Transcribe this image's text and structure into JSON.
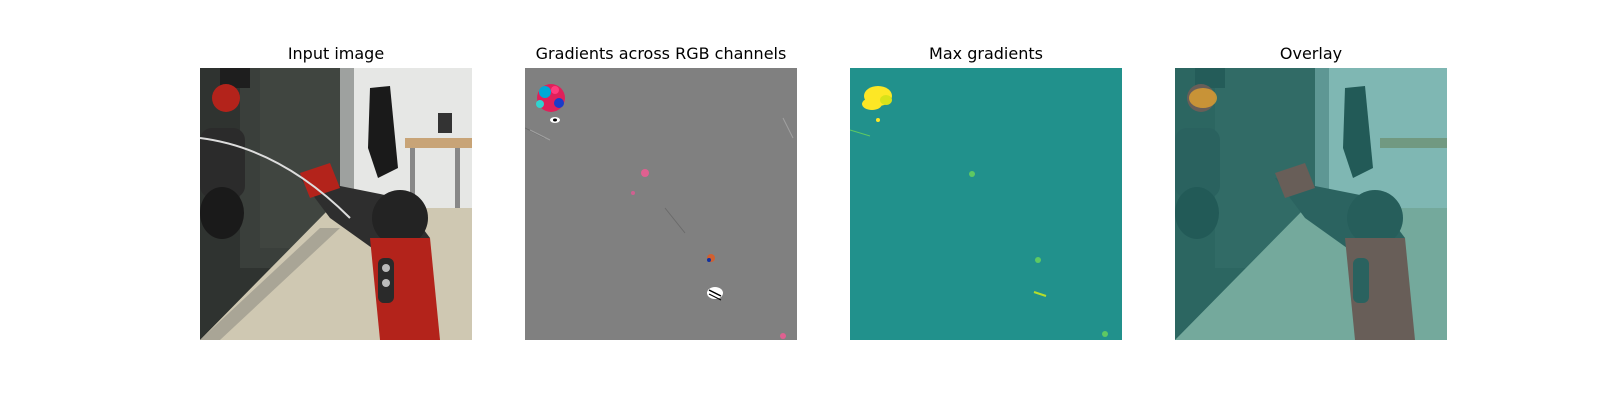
{
  "figure": {
    "panels": [
      {
        "title": "Input image",
        "image": "robot-arm-photo"
      },
      {
        "title": "Gradients across RGB channels",
        "image": "rgb-gradient-map"
      },
      {
        "title": "Max gradients",
        "image": "max-gradient-heatmap"
      },
      {
        "title": "Overlay",
        "image": "gradient-overlay-photo"
      }
    ],
    "colors": {
      "gradient_background": "#808080",
      "heatmap_background": "#21918c",
      "heatmap_peak": "#fde725",
      "heatmap_mid": "#5ec962",
      "overlay_tint": "#2a8f8a",
      "robot_red": "#b3231b",
      "robot_black": "#2b2b2b"
    }
  }
}
